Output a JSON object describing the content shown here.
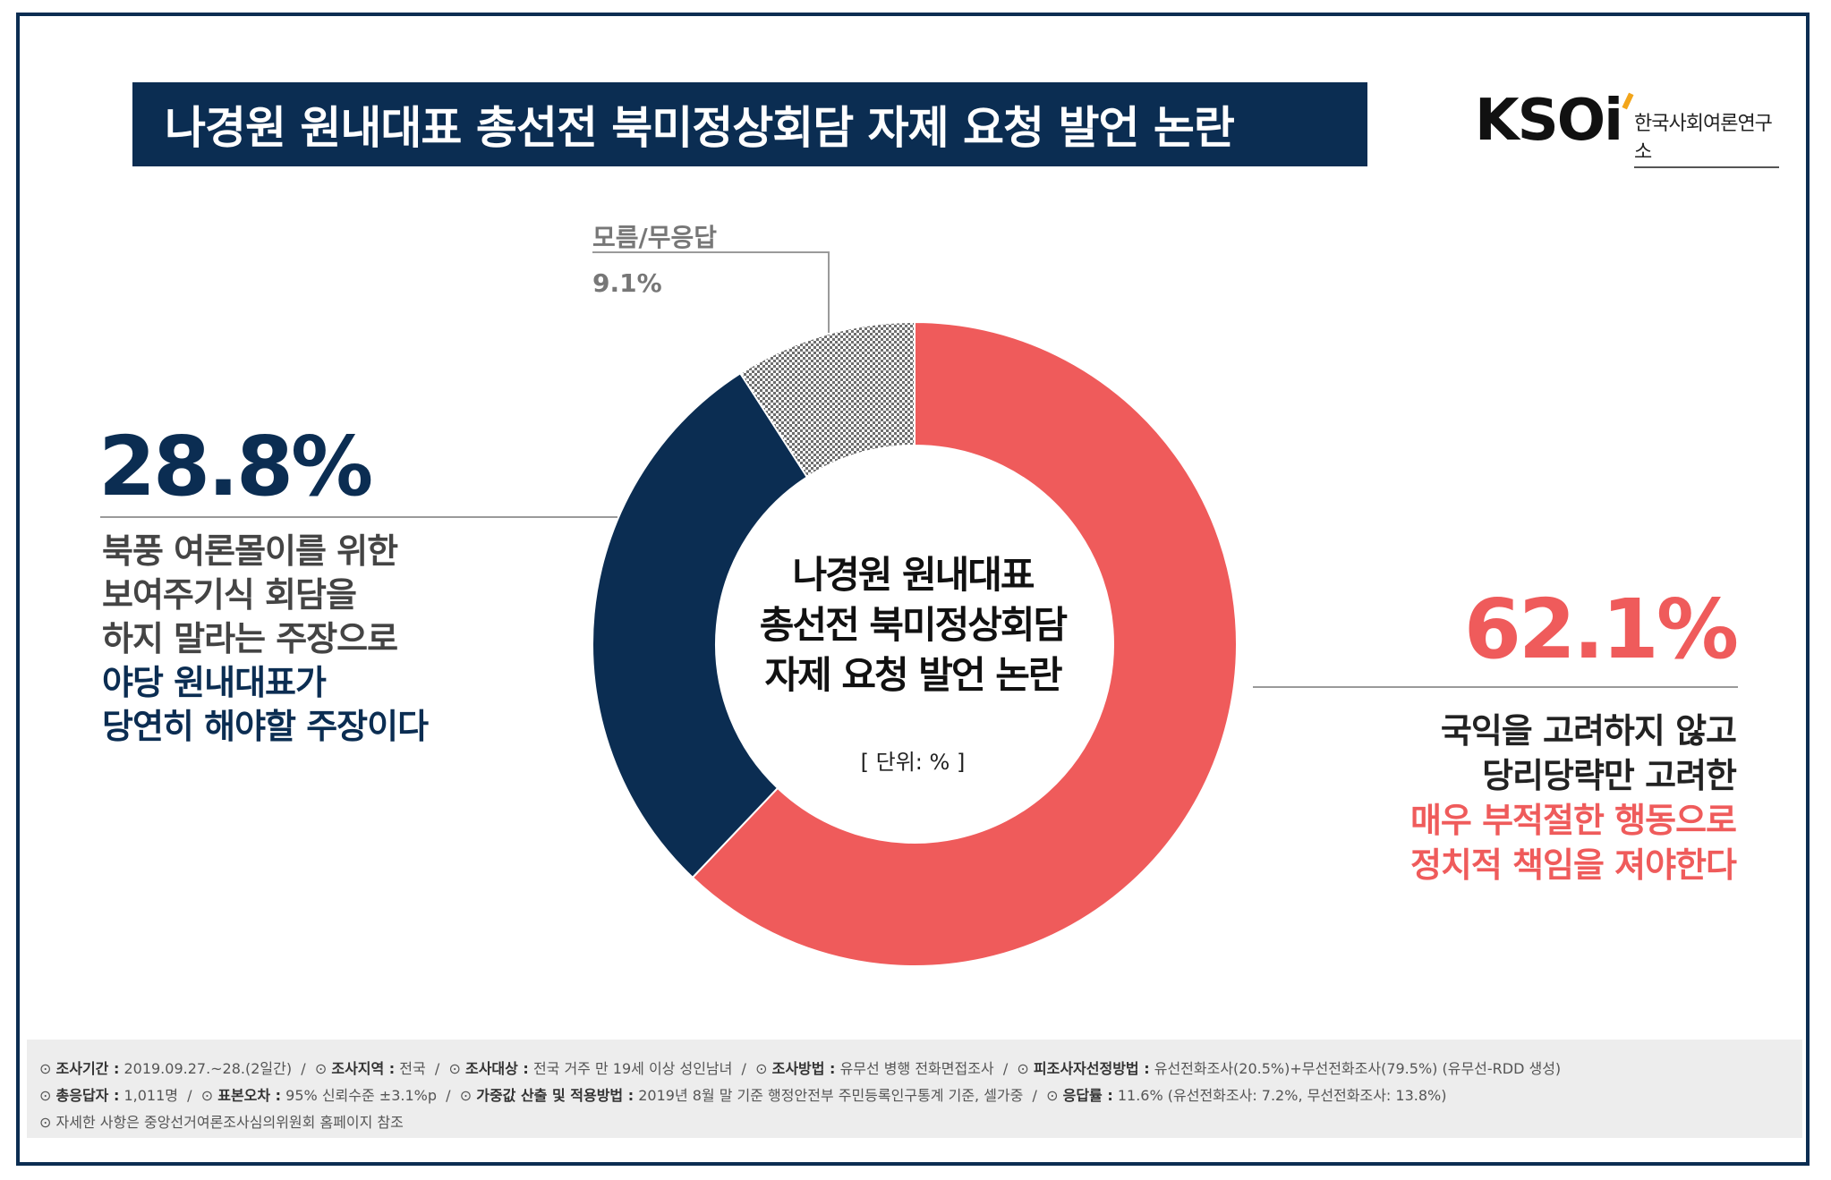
{
  "header": {
    "title": "나경원 원내대표 총선전 북미정상회담 자제 요청 발언 논란",
    "logo_mark": "KSOi",
    "logo_text": "한국사회여론연구소"
  },
  "colors": {
    "navy": "#0b2d52",
    "red": "#ef5b5b",
    "gray_pattern": "#8a8a8a"
  },
  "chart_data": {
    "type": "pie",
    "donut": true,
    "title_lines": [
      "나경원 원내대표",
      "총선전 북미정상회담",
      "자제 요청 발언 논란"
    ],
    "unit_label": "[ 단위: % ]",
    "slices": [
      {
        "label": "국익을 고려하지 않고 당리당략만 고려한 매우 부적절한 행동으로 정치적 책임을 져야한다",
        "value": 62.1,
        "color": "#ef5b5b"
      },
      {
        "label": "북풍 여론몰이를 위한 보여주기식 회담을 하지 말라는 주장으로 야당 원내대표가 당연히 해야할 주장이다",
        "value": 28.8,
        "color": "#0b2d52"
      },
      {
        "label": "모름/무응답",
        "value": 9.1,
        "color": "pattern"
      }
    ]
  },
  "annotations": {
    "unknown": {
      "name": "모름/무응답",
      "value": "9.1%"
    },
    "navy": {
      "value": "28.8%",
      "lines": [
        "북풍 여론몰이를 위한",
        "보여주기식 회담을",
        "하지 말라는 주장으로"
      ],
      "highlight_lines": [
        "야당 원내대표가",
        "당연히 해야할 주장이다"
      ]
    },
    "red": {
      "value": "62.1%",
      "lines": [
        "국익을 고려하지 않고",
        "당리당략만 고려한"
      ],
      "highlight_lines": [
        "매우 부적절한 행동으로",
        "정치적 책임을 져야한다"
      ]
    }
  },
  "footer": {
    "line1": [
      {
        "k": "조사기간 :",
        "v": "2019.09.27.~28.(2일간)"
      },
      {
        "k": "조사지역 :",
        "v": "전국"
      },
      {
        "k": "조사대상 :",
        "v": "전국 거주 만 19세 이상 성인남녀"
      },
      {
        "k": "조사방법 :",
        "v": "유무선 병행 전화면접조사"
      },
      {
        "k": "피조사자선정방법 :",
        "v": "유선전화조사(20.5%)+무선전화조사(79.5%) (유무선-RDD 생성)"
      }
    ],
    "line2": [
      {
        "k": "총응답자 :",
        "v": "1,011명"
      },
      {
        "k": "표본오차 :",
        "v": "95% 신뢰수준 ±3.1%p"
      },
      {
        "k": "가중값 산출 및 적용방법 :",
        "v": "2019년 8월 말 기준 행정안전부 주민등록인구통계 기준, 셀가중"
      },
      {
        "k": "응답률 :",
        "v": "11.6% (유선전화조사: 7.2%, 무선전화조사: 13.8%)"
      }
    ],
    "note": "자세한 사항은 중앙선거여론조사심의위원회 홈페이지 참조"
  }
}
